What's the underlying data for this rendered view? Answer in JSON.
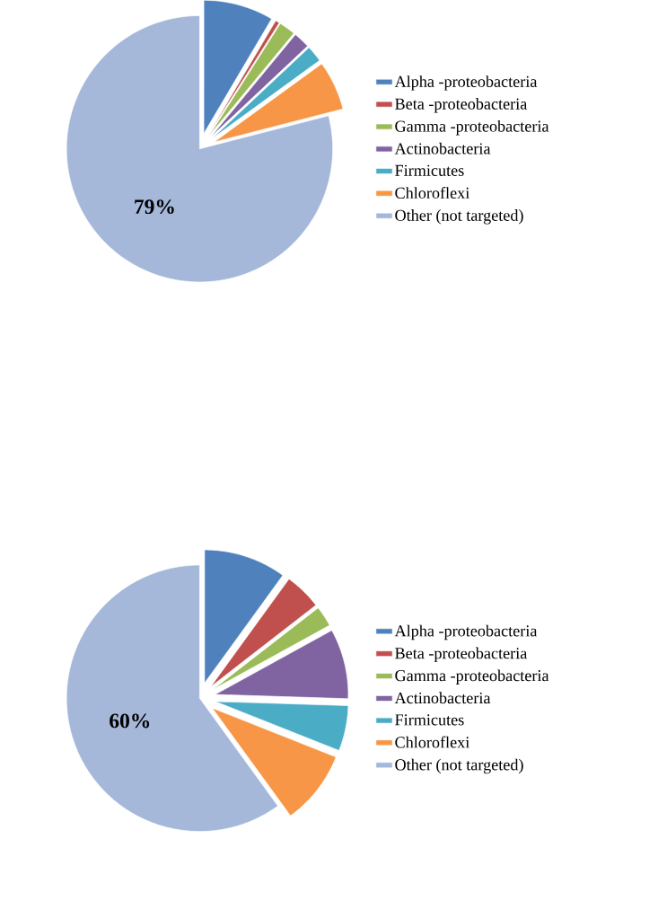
{
  "chart_data": [
    {
      "type": "pie",
      "categories": [
        "Alpha -proteobacteria",
        "Beta -proteobacteria",
        "Gamma -proteobacteria",
        "Actinobacteria",
        "Firmicutes",
        "Chloroflexi",
        "Other (not targeted)"
      ],
      "values": [
        8.5,
        0.5,
        2,
        2,
        2,
        6,
        79
      ],
      "colors": [
        "#4f81bd",
        "#c0504d",
        "#9bbb59",
        "#8064a2",
        "#4bacc6",
        "#f79646",
        "#a5b8da"
      ],
      "value_labels": [
        null,
        null,
        null,
        null,
        null,
        null,
        "79%"
      ],
      "legend": "right"
    },
    {
      "type": "pie",
      "categories": [
        "Alpha -proteobacteria",
        "Beta -proteobacteria",
        "Gamma -proteobacteria",
        "Actinobacteria",
        "Firmicutes",
        "Chloroflexi",
        "Other (not targeted)"
      ],
      "values": [
        10,
        4.5,
        2.5,
        8.5,
        5.5,
        9,
        60
      ],
      "colors": [
        "#4f81bd",
        "#c0504d",
        "#9bbb59",
        "#8064a2",
        "#4bacc6",
        "#f79646",
        "#a5b8da"
      ],
      "value_labels": [
        null,
        null,
        null,
        null,
        null,
        null,
        "60%"
      ],
      "legend": "right"
    }
  ]
}
